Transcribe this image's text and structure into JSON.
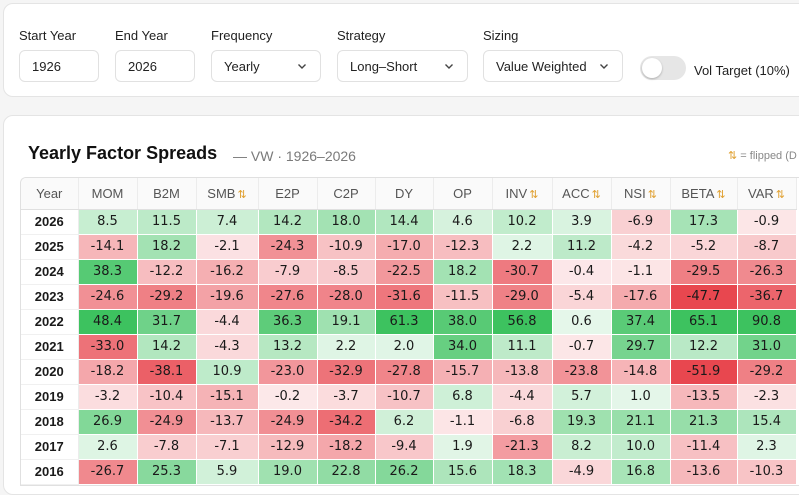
{
  "controls": {
    "start_year": {
      "label": "Start Year",
      "value": "1926"
    },
    "end_year": {
      "label": "End Year",
      "value": "2026"
    },
    "frequency": {
      "label": "Frequency",
      "value": "Yearly"
    },
    "strategy": {
      "label": "Strategy",
      "value": "Long–Short"
    },
    "sizing": {
      "label": "Sizing",
      "value": "Value Weighted"
    },
    "vol_target": {
      "label": "Vol Target (10%)",
      "on": false
    }
  },
  "panel": {
    "title": "Yearly Factor Spreads",
    "subtitle": "— VW · 1926–2026",
    "flip_arrow": "⇅",
    "flip_note": "= flipped (D"
  },
  "colors": {
    "pos_max": "#3dc25f",
    "neg_max": "#e8474f",
    "neutral": "#ffffff"
  },
  "table": {
    "year_header": "Year",
    "columns": [
      {
        "name": "MOM",
        "flipped": false
      },
      {
        "name": "B2M",
        "flipped": false
      },
      {
        "name": "SMB",
        "flipped": true
      },
      {
        "name": "E2P",
        "flipped": false
      },
      {
        "name": "C2P",
        "flipped": false
      },
      {
        "name": "DY",
        "flipped": false
      },
      {
        "name": "OP",
        "flipped": false
      },
      {
        "name": "INV",
        "flipped": true
      },
      {
        "name": "ACC",
        "flipped": true
      },
      {
        "name": "NSI",
        "flipped": true
      },
      {
        "name": "BETA",
        "flipped": true
      },
      {
        "name": "VAR",
        "flipped": true
      }
    ],
    "rows": [
      {
        "year": "2026",
        "values": [
          "8.5",
          "11.5",
          "7.4",
          "14.2",
          "18.0",
          "14.4",
          "4.6",
          "10.2",
          "3.9",
          "-6.9",
          "17.3",
          "-0.9"
        ]
      },
      {
        "year": "2025",
        "values": [
          "-14.1",
          "18.2",
          "-2.1",
          "-24.3",
          "-10.9",
          "-17.0",
          "-12.3",
          "2.2",
          "11.2",
          "-4.2",
          "-5.2",
          "-8.7"
        ]
      },
      {
        "year": "2024",
        "values": [
          "38.3",
          "-12.2",
          "-16.2",
          "-7.9",
          "-8.5",
          "-22.5",
          "18.2",
          "-30.7",
          "-0.4",
          "-1.1",
          "-29.5",
          "-26.3"
        ]
      },
      {
        "year": "2023",
        "values": [
          "-24.6",
          "-29.2",
          "-19.6",
          "-27.6",
          "-28.0",
          "-31.6",
          "-11.5",
          "-29.0",
          "-5.4",
          "-17.6",
          "-47.7",
          "-36.7"
        ]
      },
      {
        "year": "2022",
        "values": [
          "48.4",
          "31.7",
          "-4.4",
          "36.3",
          "19.1",
          "61.3",
          "38.0",
          "56.8",
          "0.6",
          "37.4",
          "65.1",
          "90.8"
        ]
      },
      {
        "year": "2021",
        "values": [
          "-33.0",
          "14.2",
          "-4.3",
          "13.2",
          "2.2",
          "2.0",
          "34.0",
          "11.1",
          "-0.7",
          "29.7",
          "12.2",
          "31.0"
        ]
      },
      {
        "year": "2020",
        "values": [
          "-18.2",
          "-38.1",
          "10.9",
          "-23.0",
          "-32.9",
          "-27.8",
          "-15.7",
          "-13.8",
          "-23.8",
          "-14.8",
          "-51.9",
          "-29.2"
        ]
      },
      {
        "year": "2019",
        "values": [
          "-3.2",
          "-10.4",
          "-15.1",
          "-0.2",
          "-3.7",
          "-10.7",
          "6.8",
          "-4.4",
          "5.7",
          "1.0",
          "-13.5",
          "-2.3"
        ]
      },
      {
        "year": "2018",
        "values": [
          "26.9",
          "-24.9",
          "-13.7",
          "-24.9",
          "-34.2",
          "6.2",
          "-1.1",
          "-6.8",
          "19.3",
          "21.1",
          "21.3",
          "15.4"
        ]
      },
      {
        "year": "2017",
        "values": [
          "2.6",
          "-7.8",
          "-7.1",
          "-12.9",
          "-18.2",
          "-9.4",
          "1.9",
          "-21.3",
          "8.2",
          "10.0",
          "-11.4",
          "2.3"
        ]
      },
      {
        "year": "2016",
        "values": [
          "-26.7",
          "25.3",
          "5.9",
          "19.0",
          "22.8",
          "26.2",
          "15.6",
          "18.3",
          "-4.9",
          "16.8",
          "-13.6",
          "-10.3"
        ]
      }
    ]
  }
}
